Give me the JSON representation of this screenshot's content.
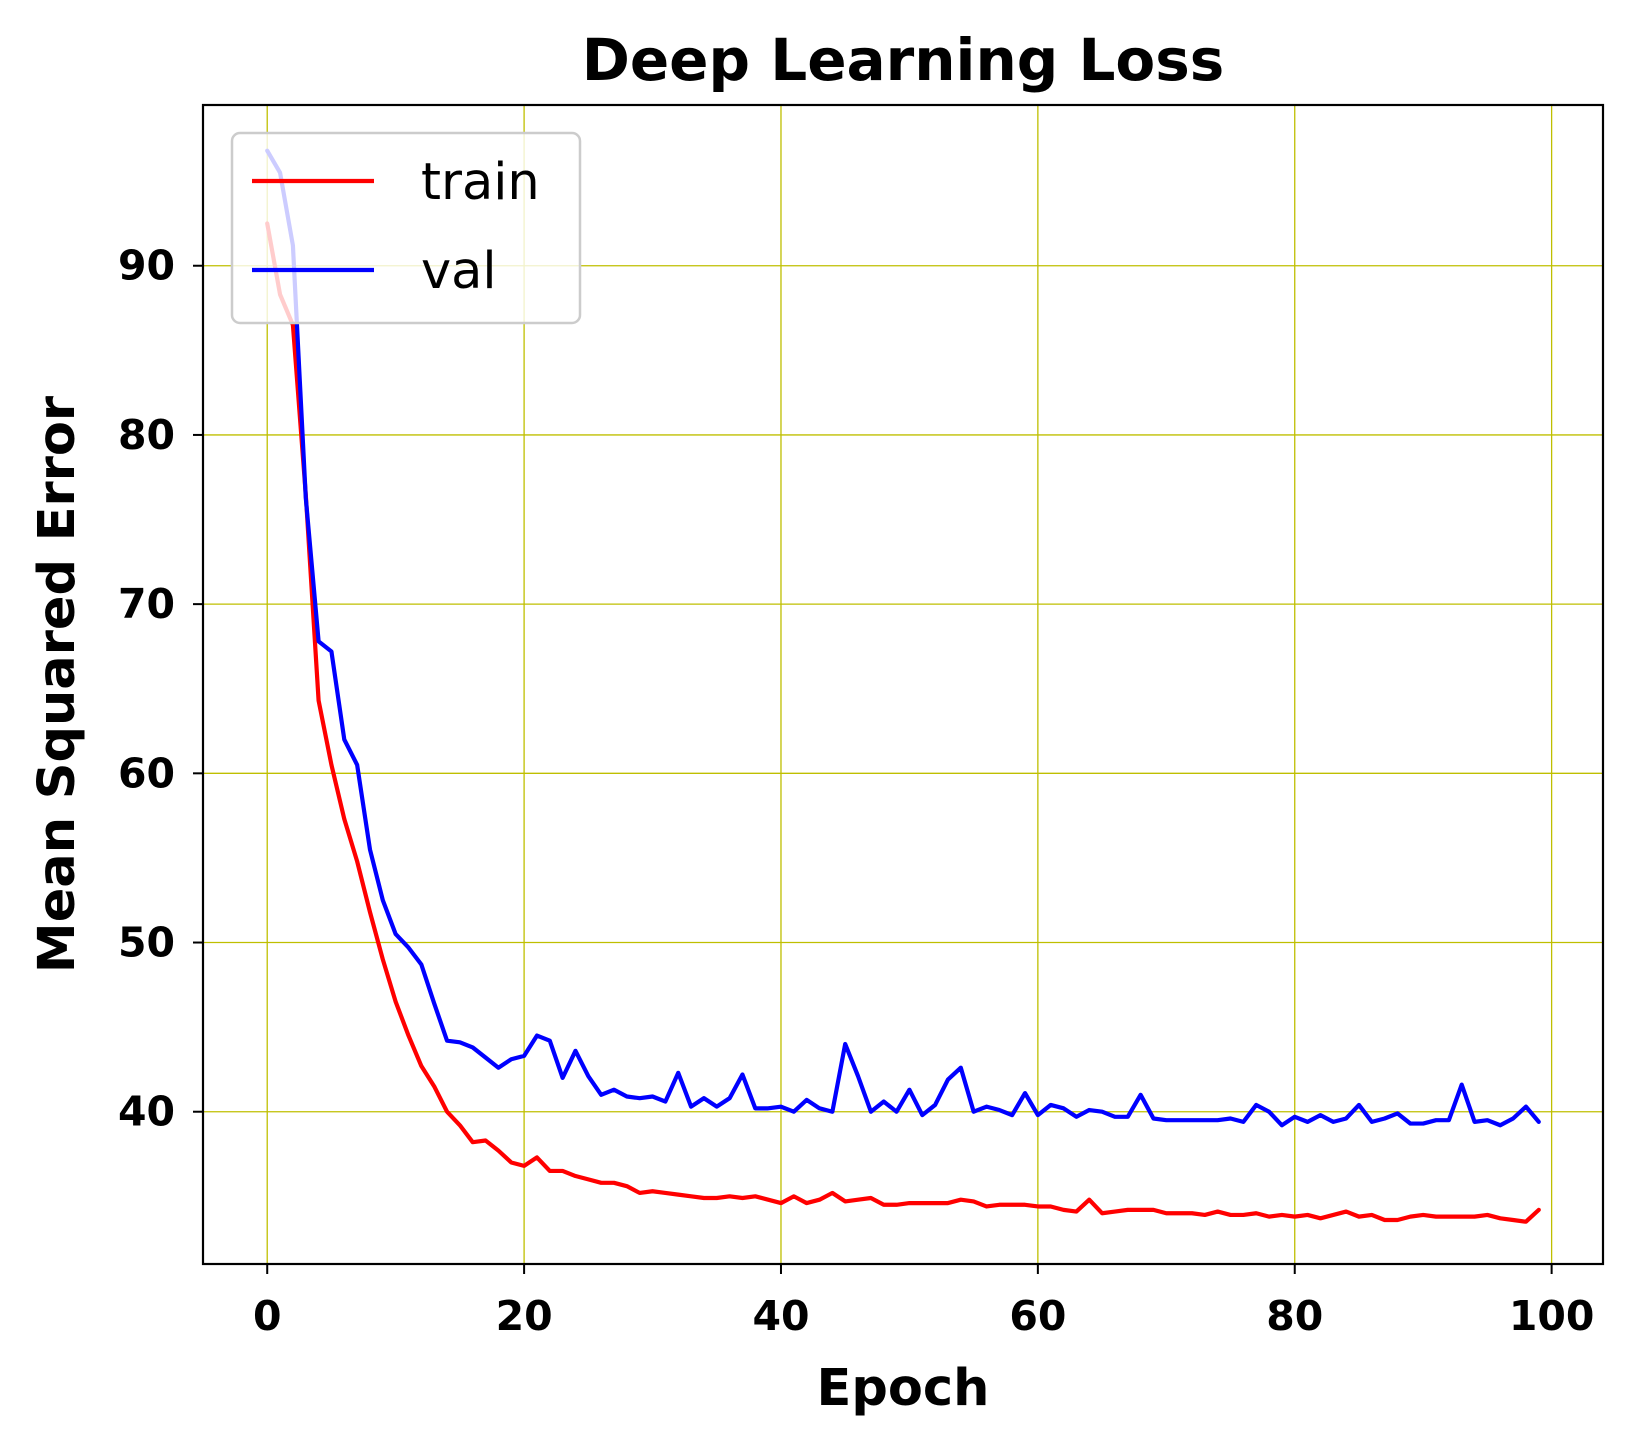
{
  "chart_data": {
    "type": "line",
    "title": "Deep Learning Loss",
    "xlabel": "Epoch",
    "ylabel": "Mean Squared Error",
    "xlim": [
      -5,
      104
    ],
    "ylim": [
      31,
      99.5
    ],
    "xticks": [
      0,
      20,
      40,
      60,
      80,
      100
    ],
    "yticks": [
      40,
      50,
      60,
      70,
      80,
      90
    ],
    "grid": true,
    "grid_color": "#bfbf00",
    "legend_position": "upper left",
    "series": [
      {
        "name": "train",
        "color": "#ff0000",
        "values": [
          92.5,
          88.3,
          86.5,
          76.5,
          64.3,
          60.5,
          57.3,
          54.8,
          51.8,
          49.0,
          46.5,
          44.5,
          42.7,
          41.5,
          40.0,
          39.2,
          38.2,
          38.3,
          37.7,
          37.0,
          36.8,
          37.3,
          36.5,
          36.5,
          36.2,
          36.0,
          35.8,
          35.8,
          35.6,
          35.2,
          35.3,
          35.2,
          35.1,
          35.0,
          34.9,
          34.9,
          35.0,
          34.9,
          35.0,
          34.8,
          34.6,
          35.0,
          34.6,
          34.8,
          35.2,
          34.7,
          34.8,
          34.9,
          34.5,
          34.5,
          34.6,
          34.6,
          34.6,
          34.6,
          34.8,
          34.7,
          34.4,
          34.5,
          34.5,
          34.5,
          34.4,
          34.4,
          34.2,
          34.1,
          34.8,
          34.0,
          34.1,
          34.2,
          34.2,
          34.2,
          34.0,
          34.0,
          34.0,
          33.9,
          34.1,
          33.9,
          33.9,
          34.0,
          33.8,
          33.9,
          33.8,
          33.9,
          33.7,
          33.9,
          34.1,
          33.8,
          33.9,
          33.6,
          33.6,
          33.8,
          33.9,
          33.8,
          33.8,
          33.8,
          33.8,
          33.9,
          33.7,
          33.6,
          33.5,
          34.2
        ]
      },
      {
        "name": "val",
        "color": "#0000ff",
        "values": [
          96.8,
          95.5,
          91.2,
          76.3,
          67.8,
          67.2,
          62.0,
          60.5,
          55.5,
          52.5,
          50.5,
          49.7,
          48.7,
          46.4,
          44.2,
          44.1,
          43.8,
          43.2,
          42.6,
          43.1,
          43.3,
          44.5,
          44.2,
          42.0,
          43.6,
          42.1,
          41.0,
          41.3,
          40.9,
          40.8,
          40.9,
          40.6,
          42.3,
          40.3,
          40.8,
          40.3,
          40.8,
          42.2,
          40.2,
          40.2,
          40.3,
          40.0,
          40.7,
          40.2,
          40.0,
          44.0,
          42.1,
          40.0,
          40.6,
          40.0,
          41.3,
          39.8,
          40.4,
          41.9,
          42.6,
          40.0,
          40.3,
          40.1,
          39.8,
          41.1,
          39.8,
          40.4,
          40.2,
          39.7,
          40.1,
          40.0,
          39.7,
          39.7,
          41.0,
          39.6,
          39.5,
          39.5,
          39.5,
          39.5,
          39.5,
          39.6,
          39.4,
          40.4,
          40.0,
          39.2,
          39.7,
          39.4,
          39.8,
          39.4,
          39.6,
          40.4,
          39.4,
          39.6,
          39.9,
          39.3,
          39.3,
          39.5,
          39.5,
          41.6,
          39.4,
          39.5,
          39.2,
          39.6,
          40.3,
          39.4
        ]
      }
    ]
  }
}
